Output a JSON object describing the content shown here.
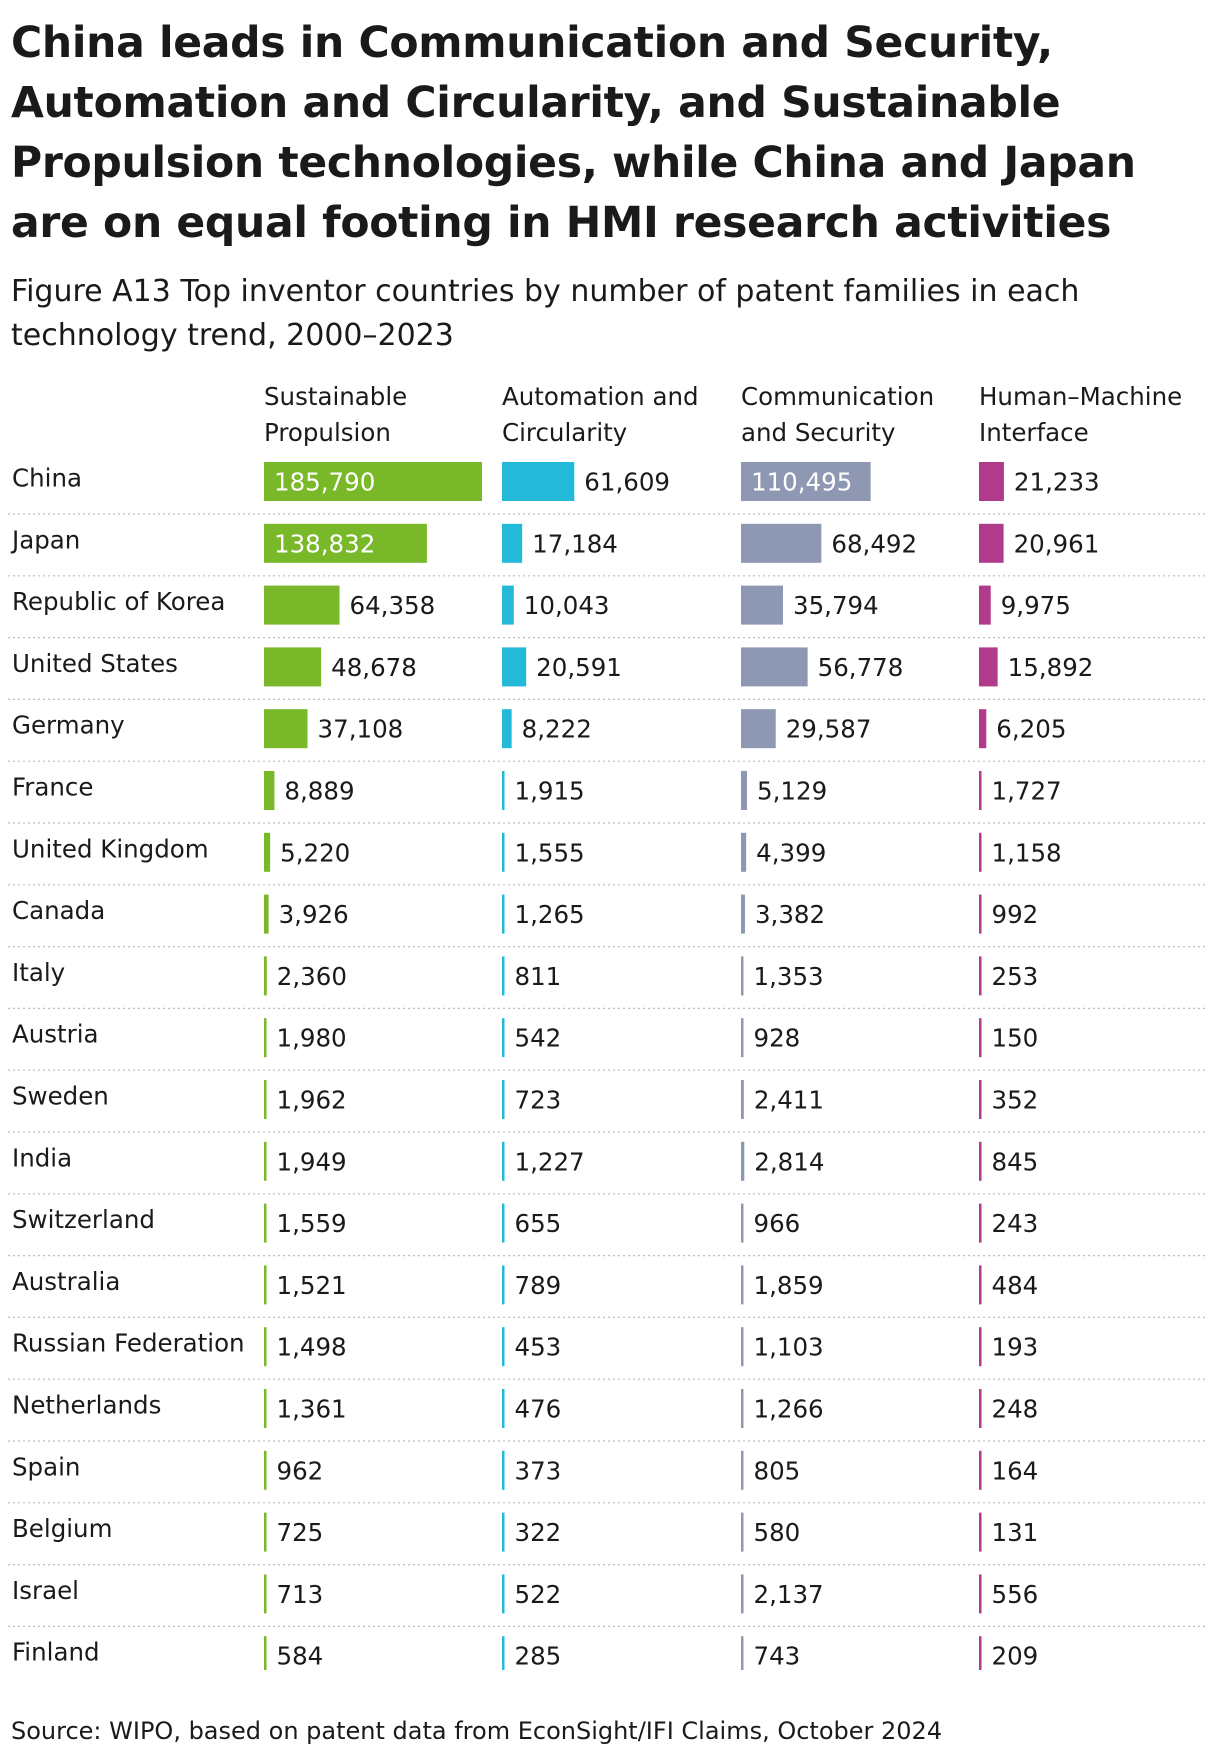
{
  "headline": "China leads in Communication and Security, Automation and Circularity, and Sustainable Propulsion technologies, while China and Japan are on equal footing in HMI research activities",
  "source": "Source: WIPO, based on patent data from EconSight/IFI Claims, October 2024",
  "chart_data": {
    "type": "bar",
    "title": "Figure A13 Top inventor countries by number of patent families in each technology trend, 2000–2023",
    "orientation": "horizontal",
    "layout": "small multiples, one column per technology trend, values labelled at bar end",
    "grid": false,
    "legend": "none",
    "categories": [
      "China",
      "Japan",
      "Republic of Korea",
      "United States",
      "Germany",
      "France",
      "United Kingdom",
      "Canada",
      "Italy",
      "Austria",
      "Sweden",
      "India",
      "Switzerland",
      "Australia",
      "Russian Federation",
      "Netherlands",
      "Spain",
      "Belgium",
      "Israel",
      "Finland"
    ],
    "xlim": [
      0,
      185790
    ],
    "series": [
      {
        "name": "Sustainable Propulsion",
        "header": [
          "Sustainable",
          "Propulsion"
        ],
        "color": "#79b829",
        "values": [
          185790,
          138832,
          64358,
          48678,
          37108,
          8889,
          5220,
          3926,
          2360,
          1980,
          1962,
          1949,
          1559,
          1521,
          1498,
          1361,
          962,
          725,
          713,
          584
        ],
        "labels": [
          "185,790",
          "138,832",
          "64,358",
          "48,678",
          "37,108",
          "8,889",
          "5,220",
          "3,926",
          "2,360",
          "1,980",
          "1,962",
          "1,949",
          "1,559",
          "1,521",
          "1,498",
          "1,361",
          "962",
          "725",
          "713",
          "584"
        ]
      },
      {
        "name": "Automation and Circularity",
        "header": [
          "Automation and",
          "Circularity"
        ],
        "color": "#23b9d8",
        "values": [
          61609,
          17184,
          10043,
          20591,
          8222,
          1915,
          1555,
          1265,
          811,
          542,
          723,
          1227,
          655,
          789,
          453,
          476,
          373,
          322,
          522,
          285
        ],
        "labels": [
          "61,609",
          "17,184",
          "10,043",
          "20,591",
          "8,222",
          "1,915",
          "1,555",
          "1,265",
          "811",
          "542",
          "723",
          "1,227",
          "655",
          "789",
          "453",
          "476",
          "373",
          "322",
          "522",
          "285"
        ]
      },
      {
        "name": "Communication and Security",
        "header": [
          "Communication",
          "and Security"
        ],
        "color": "#8e98b2",
        "values": [
          110495,
          68492,
          35794,
          56778,
          29587,
          5129,
          4399,
          3382,
          1353,
          928,
          2411,
          2814,
          966,
          1859,
          1103,
          1266,
          805,
          580,
          2137,
          743
        ],
        "labels": [
          "110,495",
          "68,492",
          "35,794",
          "56,778",
          "29,587",
          "5,129",
          "4,399",
          "3,382",
          "1,353",
          "928",
          "2,411",
          "2,814",
          "966",
          "1,859",
          "1,103",
          "1,266",
          "805",
          "580",
          "2,137",
          "743"
        ]
      },
      {
        "name": "Human–Machine Interface",
        "header": [
          "Human–Machine",
          "Interface"
        ],
        "color": "#b23a8a",
        "values": [
          21233,
          20961,
          9975,
          15892,
          6205,
          1727,
          1158,
          992,
          253,
          150,
          352,
          845,
          243,
          484,
          193,
          248,
          164,
          131,
          556,
          209
        ],
        "labels": [
          "21,233",
          "20,961",
          "9,975",
          "15,892",
          "6,205",
          "1,727",
          "1,158",
          "992",
          "253",
          "150",
          "352",
          "845",
          "243",
          "484",
          "193",
          "248",
          "164",
          "131",
          "556",
          "209"
        ]
      }
    ]
  }
}
